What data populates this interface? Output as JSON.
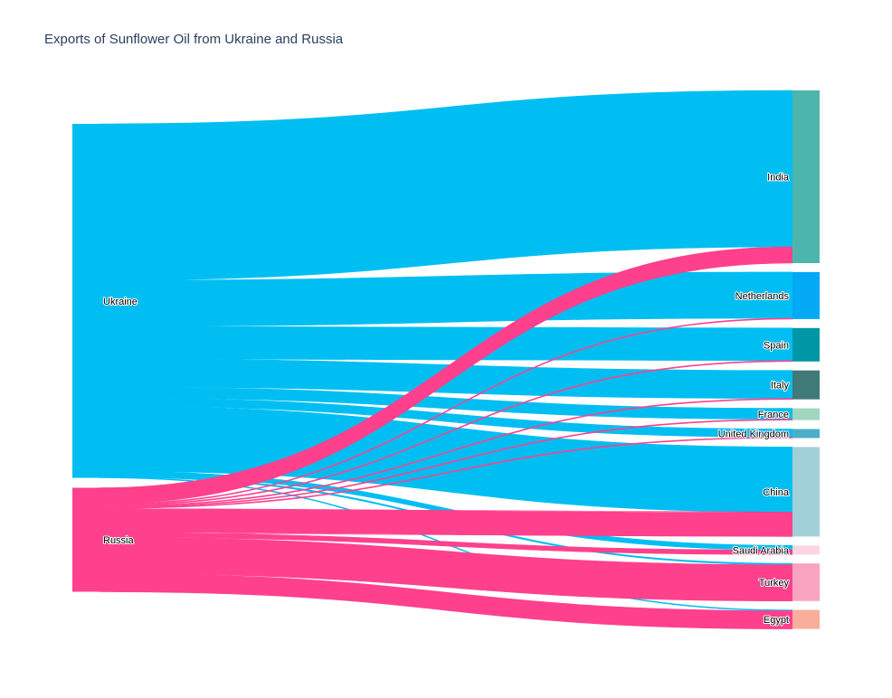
{
  "chart_data": {
    "type": "sankey",
    "title": "Exports of Sunflower Oil from Ukraine and Russia",
    "sources": [
      {
        "name": "Ukraine",
        "color": "#00bef2"
      },
      {
        "name": "Russia",
        "color": "#ff408d"
      }
    ],
    "targets": [
      {
        "name": "India",
        "color": "#4db6ac"
      },
      {
        "name": "Netherlands",
        "color": "#03a9f4"
      },
      {
        "name": "Spain",
        "color": "#0097a7"
      },
      {
        "name": "Italy",
        "color": "#3f7a78"
      },
      {
        "name": "France",
        "color": "#9ed6bf"
      },
      {
        "name": "United Kingdom",
        "color": "#4aafc7"
      },
      {
        "name": "China",
        "color": "#a2d0d8"
      },
      {
        "name": "Saudi Arabia",
        "color": "#fbd5e0"
      },
      {
        "name": "Turkey",
        "color": "#f9a3c1"
      },
      {
        "name": "Egypt",
        "color": "#f8ae9b"
      }
    ],
    "links": [
      {
        "source": "Ukraine",
        "target": "India",
        "value": 17.3
      },
      {
        "source": "Ukraine",
        "target": "Netherlands",
        "value": 5.1
      },
      {
        "source": "Ukraine",
        "target": "Spain",
        "value": 3.6
      },
      {
        "source": "Ukraine",
        "target": "Italy",
        "value": 3.1
      },
      {
        "source": "Ukraine",
        "target": "France",
        "value": 1.2
      },
      {
        "source": "Ukraine",
        "target": "United Kingdom",
        "value": 0.9
      },
      {
        "source": "Ukraine",
        "target": "China",
        "value": 7.2
      },
      {
        "source": "Ukraine",
        "target": "Saudi Arabia",
        "value": 0.5
      },
      {
        "source": "Ukraine",
        "target": "Turkey",
        "value": 0.15
      },
      {
        "source": "Ukraine",
        "target": "Egypt",
        "value": 0.1
      },
      {
        "source": "Russia",
        "target": "India",
        "value": 1.8
      },
      {
        "source": "Russia",
        "target": "Netherlands",
        "value": 0.1
      },
      {
        "source": "Russia",
        "target": "Spain",
        "value": 0.1
      },
      {
        "source": "Russia",
        "target": "Italy",
        "value": 0.1
      },
      {
        "source": "Russia",
        "target": "France",
        "value": 0.1
      },
      {
        "source": "Russia",
        "target": "United Kingdom",
        "value": 0.1
      },
      {
        "source": "Russia",
        "target": "China",
        "value": 2.7
      },
      {
        "source": "Russia",
        "target": "Saudi Arabia",
        "value": 0.5
      },
      {
        "source": "Russia",
        "target": "Turkey",
        "value": 4.0
      },
      {
        "source": "Russia",
        "target": "Egypt",
        "value": 2.0
      }
    ]
  }
}
